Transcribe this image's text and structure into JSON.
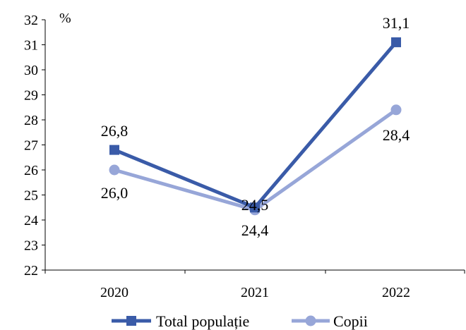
{
  "chart_data": {
    "type": "line",
    "unit_label": "%",
    "categories": [
      "2020",
      "2021",
      "2022"
    ],
    "ylim": [
      22,
      32
    ],
    "yticks": [
      "22",
      "23",
      "24",
      "25",
      "26",
      "27",
      "28",
      "29",
      "30",
      "31",
      "32"
    ],
    "series": [
      {
        "name": "Total populație",
        "values": [
          26.8,
          24.5,
          31.1
        ],
        "labels": [
          "26,8",
          "24,5",
          "31,1"
        ],
        "color": "#3a5ba8",
        "marker": "square"
      },
      {
        "name": "Copii",
        "values": [
          26.0,
          24.4,
          28.4
        ],
        "labels": [
          "26,0",
          "24,4",
          "28,4"
        ],
        "color": "#97a6d8",
        "marker": "circle"
      }
    ],
    "grid": false,
    "legend_position": "bottom"
  }
}
